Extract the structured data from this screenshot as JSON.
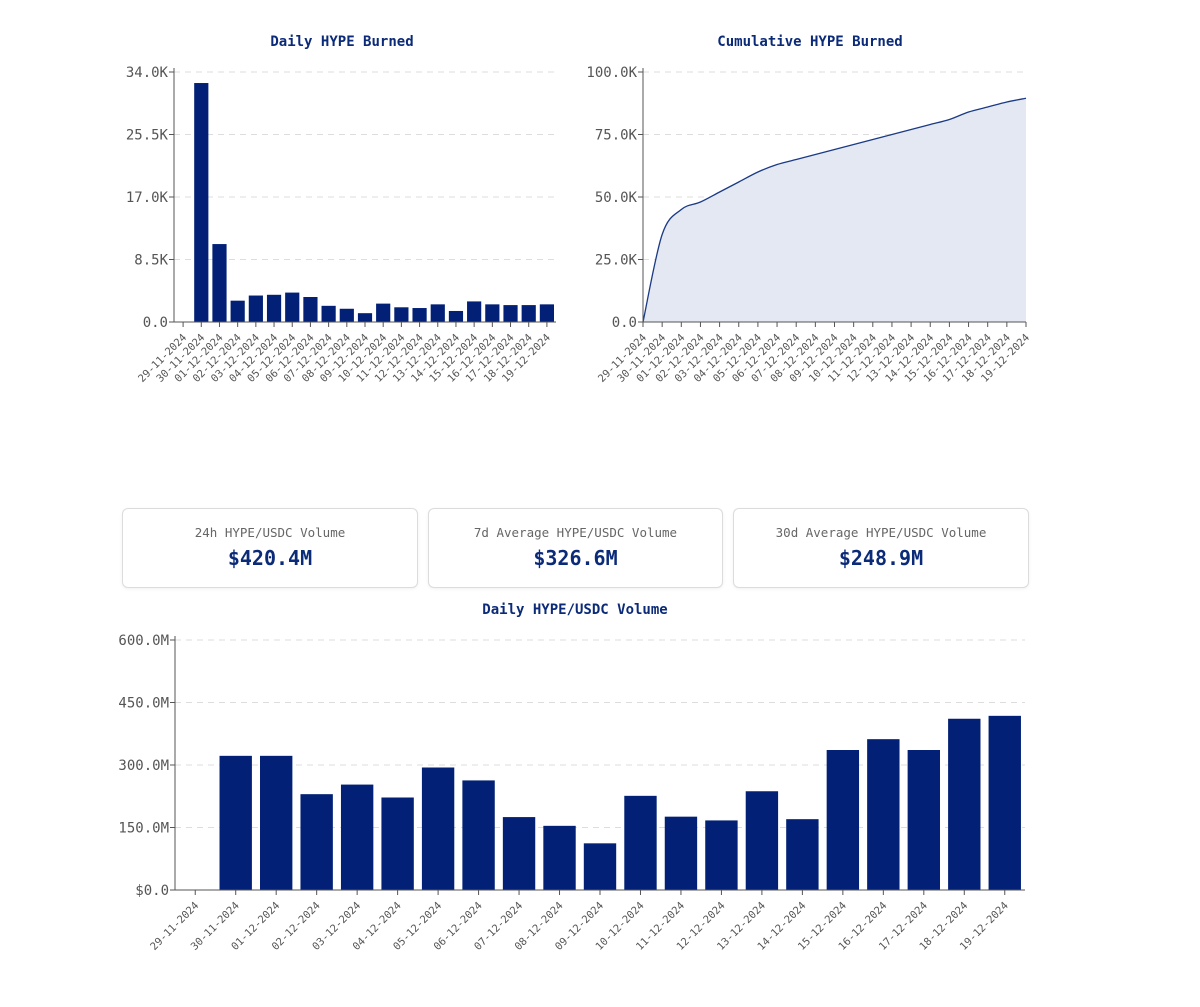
{
  "colors": {
    "bar": "#022176",
    "line": "#1a3a85",
    "area": "#e3e8f2",
    "grid": "#dddddd",
    "axis": "#555555",
    "title": "#0b2a78"
  },
  "stats": [
    {
      "label": "24h HYPE/USDC Volume",
      "value": "$420.4M"
    },
    {
      "label": "7d Average HYPE/USDC Volume",
      "value": "$326.6M"
    },
    {
      "label": "30d Average HYPE/USDC Volume",
      "value": "$248.9M"
    }
  ],
  "chart_data": [
    {
      "id": "daily-burn",
      "type": "bar",
      "title": "Daily HYPE Burned",
      "categories": [
        "29-11-2024",
        "30-11-2024",
        "01-12-2024",
        "02-12-2024",
        "03-12-2024",
        "04-12-2024",
        "05-12-2024",
        "06-12-2024",
        "07-12-2024",
        "08-12-2024",
        "09-12-2024",
        "10-12-2024",
        "11-12-2024",
        "12-12-2024",
        "13-12-2024",
        "14-12-2024",
        "15-12-2024",
        "16-12-2024",
        "17-12-2024",
        "18-12-2024",
        "19-12-2024"
      ],
      "values": [
        0,
        32500,
        10600,
        2900,
        3600,
        3700,
        4000,
        3400,
        2200,
        1800,
        1200,
        2500,
        2000,
        1900,
        2400,
        1500,
        2800,
        2400,
        2300,
        2300,
        2400
      ],
      "ylim": [
        0,
        34000
      ],
      "yticks": [
        0,
        8500,
        17000,
        25500,
        34000
      ],
      "ytick_labels": [
        "0.0",
        "8.5K",
        "17.0K",
        "25.5K",
        "34.0K"
      ],
      "grid": true
    },
    {
      "id": "cumulative-burn",
      "type": "area",
      "title": "Cumulative HYPE Burned",
      "categories": [
        "29-11-2024",
        "30-11-2024",
        "01-12-2024",
        "02-12-2024",
        "03-12-2024",
        "04-12-2024",
        "05-12-2024",
        "06-12-2024",
        "07-12-2024",
        "08-12-2024",
        "09-12-2024",
        "10-12-2024",
        "11-12-2024",
        "12-12-2024",
        "13-12-2024",
        "14-12-2024",
        "15-12-2024",
        "16-12-2024",
        "17-12-2024",
        "18-12-2024",
        "19-12-2024"
      ],
      "values": [
        0,
        35000,
        45000,
        48000,
        52000,
        56000,
        60000,
        63000,
        65000,
        67000,
        69000,
        71000,
        73000,
        75000,
        77000,
        79000,
        81000,
        84000,
        86000,
        88000,
        89500
      ],
      "ylim": [
        0,
        100000
      ],
      "yticks": [
        0,
        25000,
        50000,
        75000,
        100000
      ],
      "ytick_labels": [
        "0.0",
        "25.0K",
        "50.0K",
        "75.0K",
        "100.0K"
      ],
      "grid": true
    },
    {
      "id": "daily-volume",
      "type": "bar",
      "title": "Daily HYPE/USDC Volume",
      "categories": [
        "29-11-2024",
        "30-11-2024",
        "01-12-2024",
        "02-12-2024",
        "03-12-2024",
        "04-12-2024",
        "05-12-2024",
        "06-12-2024",
        "07-12-2024",
        "08-12-2024",
        "09-12-2024",
        "10-12-2024",
        "11-12-2024",
        "12-12-2024",
        "13-12-2024",
        "14-12-2024",
        "15-12-2024",
        "16-12-2024",
        "17-12-2024",
        "18-12-2024",
        "19-12-2024"
      ],
      "values": [
        0,
        322,
        322,
        230,
        253,
        222,
        294,
        263,
        175,
        154,
        112,
        226,
        176,
        167,
        237,
        170,
        336,
        362,
        336,
        411,
        418
      ],
      "unit": "M USD",
      "ylim": [
        0,
        600
      ],
      "yticks": [
        0,
        150,
        300,
        450,
        600
      ],
      "ytick_labels": [
        "$0.0",
        "150.0M",
        "300.0M",
        "450.0M",
        "600.0M"
      ],
      "grid": true
    }
  ]
}
